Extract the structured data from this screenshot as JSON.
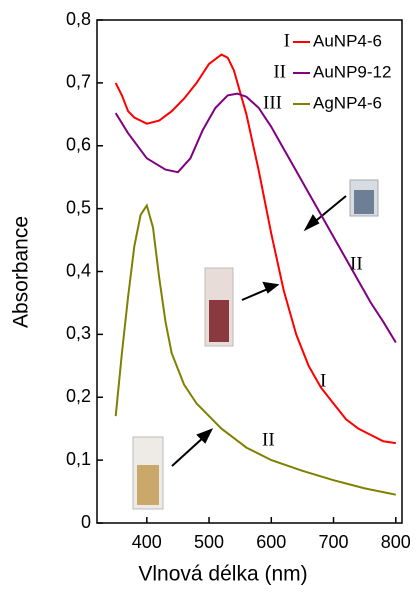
{
  "chart_data": {
    "type": "line",
    "xlabel": "Vlnová délka (nm)",
    "ylabel": "Absorbance",
    "xlim": [
      320,
      810
    ],
    "ylim": [
      0,
      0.8
    ],
    "xticks": [
      400,
      500,
      600,
      700,
      800
    ],
    "yticks": [
      0,
      {
        "value": 0.1,
        "label": "0,1"
      },
      {
        "value": 0.2,
        "label": "0,2"
      },
      {
        "value": 0.3,
        "label": "0,3"
      },
      {
        "value": 0.4,
        "label": "0,4"
      },
      {
        "value": 0.5,
        "label": "0,5"
      },
      {
        "value": 0.6,
        "label": "0,6"
      },
      {
        "value": 0.7,
        "label": "0,7"
      },
      {
        "value": 0.8,
        "label": "0,8"
      }
    ],
    "series": [
      {
        "name": "AuNP4-6",
        "label": "I",
        "color": "#ff0000",
        "x": [
          350,
          360,
          370,
          380,
          400,
          420,
          440,
          460,
          480,
          500,
          520,
          530,
          540,
          560,
          580,
          600,
          620,
          640,
          660,
          680,
          700,
          720,
          740,
          760,
          780,
          800
        ],
        "values": [
          0.7,
          0.68,
          0.655,
          0.645,
          0.635,
          0.64,
          0.655,
          0.675,
          0.7,
          0.73,
          0.745,
          0.74,
          0.72,
          0.65,
          0.56,
          0.46,
          0.37,
          0.3,
          0.25,
          0.215,
          0.19,
          0.165,
          0.15,
          0.14,
          0.13,
          0.127
        ]
      },
      {
        "name": "AuNP9-12",
        "label": "II",
        "color": "#800080",
        "x": [
          350,
          370,
          400,
          430,
          450,
          470,
          490,
          510,
          530,
          545,
          560,
          580,
          600,
          620,
          640,
          660,
          680,
          700,
          720,
          740,
          760,
          780,
          800
        ],
        "values": [
          0.652,
          0.62,
          0.58,
          0.562,
          0.558,
          0.58,
          0.625,
          0.66,
          0.68,
          0.683,
          0.678,
          0.66,
          0.63,
          0.595,
          0.56,
          0.525,
          0.49,
          0.455,
          0.42,
          0.385,
          0.35,
          0.32,
          0.287
        ]
      },
      {
        "name": "AgNP4-6",
        "label": "III",
        "color": "#808000",
        "x": [
          350,
          360,
          370,
          380,
          390,
          400,
          410,
          420,
          430,
          440,
          460,
          480,
          500,
          520,
          540,
          560,
          600,
          650,
          700,
          750,
          800
        ],
        "values": [
          0.17,
          0.27,
          0.36,
          0.44,
          0.49,
          0.505,
          0.47,
          0.39,
          0.32,
          0.27,
          0.22,
          0.19,
          0.17,
          0.15,
          0.135,
          0.12,
          0.1,
          0.083,
          0.068,
          0.055,
          0.045
        ]
      }
    ],
    "annotations": [
      "II",
      "I",
      "II"
    ]
  }
}
